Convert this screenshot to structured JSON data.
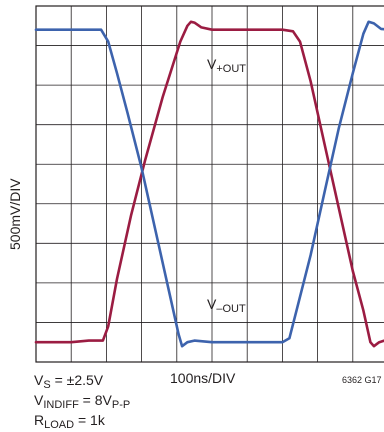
{
  "chart_data": {
    "type": "line",
    "ylabel": "500mV/DIV",
    "xlabel": "100ns/DIV",
    "figure_id": "6362 G17",
    "conditions": {
      "vs": {
        "main": "V",
        "sub": "S",
        "rest": " = ±2.5V"
      },
      "vindiff": {
        "main": "V",
        "sub": "INDIFF",
        "rest": " = 8V",
        "sub2": "P-P"
      },
      "rload": {
        "main": "R",
        "sub": "LOAD",
        "rest": " = 1k"
      }
    },
    "x_divisions": 10,
    "y_divisions": 9,
    "grid": true,
    "series": [
      {
        "label": {
          "main": "V",
          "sub": "+OUT"
        },
        "color": "#9b1c42",
        "points": [
          [
            0,
            -2.0
          ],
          [
            0.5,
            -2.0
          ],
          [
            1.0,
            -2.0
          ],
          [
            1.5,
            -1.98
          ],
          [
            1.9,
            -1.98
          ],
          [
            2.05,
            -1.8
          ],
          [
            2.3,
            -1.2
          ],
          [
            2.7,
            -0.4
          ],
          [
            3.1,
            0.3
          ],
          [
            3.6,
            1.1
          ],
          [
            4.1,
            1.8
          ],
          [
            4.3,
            2.0
          ],
          [
            4.4,
            2.05
          ],
          [
            4.5,
            2.04
          ],
          [
            4.7,
            1.98
          ],
          [
            5.0,
            1.95
          ],
          [
            5.5,
            1.95
          ],
          [
            6.0,
            1.95
          ],
          [
            6.5,
            1.95
          ],
          [
            7.0,
            1.95
          ],
          [
            7.3,
            1.93
          ],
          [
            7.5,
            1.8
          ],
          [
            7.8,
            1.3
          ],
          [
            8.2,
            0.5
          ],
          [
            8.6,
            -0.3
          ],
          [
            9.0,
            -1.1
          ],
          [
            9.3,
            -1.6
          ],
          [
            9.5,
            -2.0
          ],
          [
            9.6,
            -2.05
          ],
          [
            9.75,
            -2.0
          ],
          [
            9.9,
            -1.98
          ],
          [
            10,
            -1.98
          ]
        ]
      },
      {
        "label": {
          "main": "V",
          "sub": "–OUT"
        },
        "color": "#3d63ad",
        "points": [
          [
            0,
            1.95
          ],
          [
            0.5,
            1.95
          ],
          [
            1.0,
            1.95
          ],
          [
            1.5,
            1.95
          ],
          [
            1.85,
            1.95
          ],
          [
            2.05,
            1.8
          ],
          [
            2.3,
            1.4
          ],
          [
            2.6,
            0.9
          ],
          [
            3.0,
            0.2
          ],
          [
            3.4,
            -0.6
          ],
          [
            3.8,
            -1.4
          ],
          [
            4.05,
            -1.9
          ],
          [
            4.15,
            -2.05
          ],
          [
            4.3,
            -2.0
          ],
          [
            4.5,
            -1.98
          ],
          [
            5.0,
            -2.0
          ],
          [
            5.5,
            -2.0
          ],
          [
            6.0,
            -2.0
          ],
          [
            6.5,
            -2.0
          ],
          [
            7.0,
            -2.0
          ],
          [
            7.2,
            -1.95
          ],
          [
            7.4,
            -1.6
          ],
          [
            7.8,
            -0.9
          ],
          [
            8.2,
            -0.1
          ],
          [
            8.6,
            0.7
          ],
          [
            9.0,
            1.4
          ],
          [
            9.3,
            1.9
          ],
          [
            9.45,
            2.05
          ],
          [
            9.6,
            2.03
          ],
          [
            9.8,
            1.96
          ],
          [
            10,
            1.95
          ]
        ]
      }
    ]
  }
}
